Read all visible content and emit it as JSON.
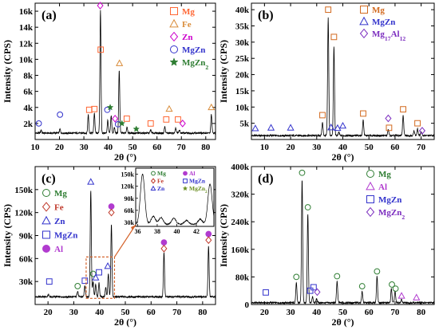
{
  "figure": {
    "panels": [
      "(a)",
      "(b)",
      "(c)",
      "(d)"
    ]
  },
  "chart_data": [
    {
      "panel": "(a)",
      "type": "line",
      "xlabel": "2θ (°)",
      "ylabel": "Intensity (CPS)",
      "xlim": [
        10,
        84
      ],
      "ylim": [
        0,
        17000
      ],
      "xticks": [
        10,
        20,
        30,
        40,
        50,
        60,
        70,
        80
      ],
      "yticks": [
        2000,
        4000,
        6000,
        8000,
        10000,
        12000,
        14000,
        16000
      ],
      "ytick_labels": [
        "2k",
        "4k",
        "6k",
        "8k",
        "10k",
        "12k",
        "14k",
        "16k"
      ],
      "baseline": 800,
      "peaks": [
        [
          12.5,
          1200
        ],
        [
          20.2,
          1300
        ],
        [
          31.8,
          3100
        ],
        [
          34.3,
          3300
        ],
        [
          36.8,
          16200
        ],
        [
          39.8,
          2400
        ],
        [
          41.2,
          3000
        ],
        [
          42.5,
          1500
        ],
        [
          44.5,
          8700
        ],
        [
          47.7,
          1600
        ],
        [
          57.4,
          1200
        ],
        [
          63.2,
          1600
        ],
        [
          67.7,
          1400
        ],
        [
          69.2,
          1200
        ],
        [
          72.5,
          800
        ],
        [
          82.3,
          3100
        ]
      ],
      "legend": [
        {
          "label": "Mg",
          "marker": "square",
          "color": "#ff6633"
        },
        {
          "label": "Fe",
          "marker": "triangle",
          "color": "#d98c3a"
        },
        {
          "label": "Zn",
          "marker": "diamond",
          "color": "#cc00cc"
        },
        {
          "label": "MgZn",
          "marker": "circle",
          "color": "#3333cc"
        },
        {
          "label": "MgZn",
          "sub": "2",
          "marker": "star",
          "color": "#2e7d32"
        }
      ],
      "markers": [
        {
          "x": 36.7,
          "y": 16700,
          "m": 2
        },
        {
          "x": 36.9,
          "y": 11200,
          "m": 0
        },
        {
          "x": 44.6,
          "y": 9500,
          "m": 1
        },
        {
          "x": 11.5,
          "y": 2000,
          "m": 3
        },
        {
          "x": 20.2,
          "y": 3100,
          "m": 3
        },
        {
          "x": 32.2,
          "y": 3700,
          "m": 0
        },
        {
          "x": 34.3,
          "y": 3800,
          "m": 0
        },
        {
          "x": 39.6,
          "y": 3700,
          "m": 3
        },
        {
          "x": 40.8,
          "y": 4000,
          "m": 4
        },
        {
          "x": 42.8,
          "y": 2600,
          "m": 2
        },
        {
          "x": 44.0,
          "y": 1900,
          "m": 3
        },
        {
          "x": 45.6,
          "y": 2000,
          "m": 4
        },
        {
          "x": 47.6,
          "y": 2600,
          "m": 0
        },
        {
          "x": 51.5,
          "y": 1300,
          "m": 4
        },
        {
          "x": 57.4,
          "y": 2000,
          "m": 0
        },
        {
          "x": 63.8,
          "y": 2500,
          "m": 0
        },
        {
          "x": 65.0,
          "y": 3800,
          "m": 1
        },
        {
          "x": 68.6,
          "y": 2500,
          "m": 0
        },
        {
          "x": 70.5,
          "y": 2000,
          "m": 2
        },
        {
          "x": 82.3,
          "y": 4000,
          "m": 1
        }
      ]
    },
    {
      "panel": "(b)",
      "type": "line",
      "xlabel": "2θ (°)",
      "ylabel": "Intensity (CPS)",
      "xlim": [
        5,
        75
      ],
      "ylim": [
        0,
        42000
      ],
      "xticks": [
        10,
        20,
        30,
        40,
        50,
        60,
        70
      ],
      "yticks": [
        5000,
        10000,
        15000,
        20000,
        25000,
        30000,
        35000,
        40000
      ],
      "ytick_labels": [
        "5k",
        "10k",
        "15k",
        "20k",
        "25k",
        "30k",
        "35k",
        "40k"
      ],
      "baseline": 1200,
      "peaks": [
        [
          32.2,
          5200
        ],
        [
          34.4,
          37500
        ],
        [
          36.6,
          28500
        ],
        [
          38.5,
          2200
        ],
        [
          47.8,
          6000
        ],
        [
          57.4,
          3000
        ],
        [
          63.1,
          7500
        ],
        [
          67.3,
          2600
        ],
        [
          68.6,
          3200
        ],
        [
          70.0,
          2400
        ]
      ],
      "legend": [
        {
          "label": "Mg",
          "marker": "square",
          "color": "#d2691e"
        },
        {
          "label": "MgZn",
          "marker": "triangle",
          "color": "#3333cc"
        },
        {
          "label": "Mg",
          "sub": "17",
          "label2": "Al",
          "sub2": "12",
          "marker": "diamond",
          "color": "#7b2cbf"
        }
      ],
      "markers": [
        {
          "x": 34.4,
          "y": 40000,
          "m": 0
        },
        {
          "x": 36.6,
          "y": 31600,
          "m": 0
        },
        {
          "x": 32.2,
          "y": 7500,
          "m": 0
        },
        {
          "x": 47.8,
          "y": 8000,
          "m": 0
        },
        {
          "x": 63.1,
          "y": 9300,
          "m": 0
        },
        {
          "x": 68.6,
          "y": 5000,
          "m": 0
        },
        {
          "x": 57.4,
          "y": 6500,
          "m": 2
        },
        {
          "x": 57.7,
          "y": 3600,
          "m": 0
        },
        {
          "x": 70.4,
          "y": 2700,
          "m": 2
        },
        {
          "x": 6.5,
          "y": 3400,
          "m": 1
        },
        {
          "x": 12.5,
          "y": 3600,
          "m": 1
        },
        {
          "x": 20.0,
          "y": 3600,
          "m": 1
        },
        {
          "x": 35.5,
          "y": 3700,
          "m": 1
        },
        {
          "x": 38.0,
          "y": 3500,
          "m": 1
        },
        {
          "x": 40.0,
          "y": 4200,
          "m": 1
        }
      ]
    },
    {
      "panel": "(c)",
      "type": "line",
      "xlabel": "2θ (°)",
      "ylabel": "Intensity (CPS)",
      "xlim": [
        15,
        85
      ],
      "ylim": [
        0,
        180000
      ],
      "xticks": [
        20,
        30,
        40,
        50,
        60,
        70,
        80
      ],
      "yticks": [
        30000,
        60000,
        90000,
        120000,
        150000
      ],
      "ytick_labels": [
        "30k",
        "60k",
        "90k",
        "120k",
        "150k"
      ],
      "baseline": 10000,
      "peaks": [
        [
          20.2,
          13000
        ],
        [
          31.5,
          18000
        ],
        [
          34.3,
          25000
        ],
        [
          36.6,
          150000
        ],
        [
          37.5,
          30000
        ],
        [
          38.5,
          26000
        ],
        [
          39.8,
          28000
        ],
        [
          42.4,
          22000
        ],
        [
          43.4,
          40000
        ],
        [
          44.6,
          105000
        ],
        [
          65.0,
          68000
        ],
        [
          82.3,
          76000
        ]
      ],
      "legend": [
        {
          "label": "Mg",
          "marker": "circle",
          "color": "#2e7d32"
        },
        {
          "label": "Fe",
          "marker": "diamond",
          "color": "#c0392b"
        },
        {
          "label": "Zn",
          "marker": "triangle",
          "color": "#3333cc"
        },
        {
          "label": "MgZn",
          "marker": "square",
          "color": "#3333cc"
        },
        {
          "label": "Al",
          "marker": "dot",
          "color": "#b13bcf"
        }
      ],
      "markers": [
        {
          "x": 36.6,
          "y": 160000,
          "m": 2
        },
        {
          "x": 44.6,
          "y": 128000,
          "m": 4
        },
        {
          "x": 44.6,
          "y": 120000,
          "m": 1
        },
        {
          "x": 65.0,
          "y": 81000,
          "m": 4
        },
        {
          "x": 65.0,
          "y": 73000,
          "m": 1
        },
        {
          "x": 82.3,
          "y": 92000,
          "m": 4
        },
        {
          "x": 82.3,
          "y": 84000,
          "m": 1
        },
        {
          "x": 20.5,
          "y": 30000,
          "m": 3
        },
        {
          "x": 31.5,
          "y": 24000,
          "m": 0
        },
        {
          "x": 34.3,
          "y": 31000,
          "m": 3
        },
        {
          "x": 37.5,
          "y": 40000,
          "m": 0
        },
        {
          "x": 38.5,
          "y": 35000,
          "m": 2
        },
        {
          "x": 39.8,
          "y": 42000,
          "m": 3
        },
        {
          "x": 43.2,
          "y": 50000,
          "m": 2
        }
      ],
      "inset": {
        "xlim": [
          35.8,
          43.8
        ],
        "ylim": [
          20000,
          165000
        ],
        "xticks": [
          36,
          38,
          40,
          42
        ],
        "yticks": [
          30000,
          60000,
          90000,
          120000,
          150000
        ],
        "ytick_labels": [
          "30k",
          "60k",
          "90k",
          "120k",
          "150k"
        ],
        "baseline": 25000,
        "peaks": [
          [
            36.5,
            150000
          ],
          [
            37.6,
            45000
          ],
          [
            38.4,
            42000
          ],
          [
            39.7,
            40000
          ],
          [
            41.0,
            35000
          ],
          [
            42.4,
            38000
          ],
          [
            43.4,
            125000
          ]
        ],
        "legend": [
          {
            "label": "Mg",
            "marker": "circle",
            "color": "#2e7d32"
          },
          {
            "label": "Fe",
            "marker": "diamond",
            "color": "#c0392b"
          },
          {
            "label": "Zn",
            "marker": "triangle",
            "color": "#3333cc"
          },
          {
            "label": "Al",
            "marker": "dot",
            "color": "#b13bcf"
          },
          {
            "label": "MgZn",
            "marker": "square",
            "color": "#3333cc"
          },
          {
            "label": "MgZn",
            "sub": "2",
            "marker": "star",
            "color": "#6b8e23"
          }
        ]
      }
    },
    {
      "panel": "(d)",
      "type": "line",
      "xlabel": "2θ (°)",
      "ylabel": "Intensity (CPS)",
      "xlim": [
        15,
        85
      ],
      "ylim": [
        0,
        400000
      ],
      "xticks": [
        20,
        30,
        40,
        50,
        60,
        70,
        80
      ],
      "yticks": [
        0,
        80000,
        160000,
        240000,
        320000,
        400000
      ],
      "ytick_labels": [
        "0",
        "80k",
        "160k",
        "240k",
        "320k",
        "400k"
      ],
      "baseline": 5000,
      "peaks": [
        [
          32.2,
          62000
        ],
        [
          34.4,
          365000
        ],
        [
          36.6,
          265000
        ],
        [
          38.4,
          22000
        ],
        [
          40.0,
          17000
        ],
        [
          47.8,
          68000
        ],
        [
          57.4,
          38000
        ],
        [
          63.1,
          82000
        ],
        [
          68.6,
          46000
        ],
        [
          70.0,
          38000
        ],
        [
          72.5,
          14000
        ]
      ],
      "legend": [
        {
          "label": "Mg",
          "marker": "circle",
          "color": "#2e7d32"
        },
        {
          "label": "Al",
          "marker": "triangle",
          "color": "#b13bcf"
        },
        {
          "label": "MgZn",
          "marker": "square",
          "color": "#3333cc"
        },
        {
          "label": "MgZn",
          "sub": "2",
          "marker": "diamond",
          "color": "#7b2cbf"
        }
      ],
      "markers": [
        {
          "x": 34.4,
          "y": 382000,
          "m": 0
        },
        {
          "x": 36.6,
          "y": 282000,
          "m": 0
        },
        {
          "x": 32.2,
          "y": 80000,
          "m": 0
        },
        {
          "x": 47.8,
          "y": 82000,
          "m": 0
        },
        {
          "x": 57.4,
          "y": 53000,
          "m": 0
        },
        {
          "x": 63.1,
          "y": 96000,
          "m": 0
        },
        {
          "x": 68.8,
          "y": 58000,
          "m": 0
        },
        {
          "x": 70.2,
          "y": 46000,
          "m": 0
        },
        {
          "x": 20.5,
          "y": 35000,
          "m": 2
        },
        {
          "x": 37.5,
          "y": 40000,
          "m": 2
        },
        {
          "x": 38.8,
          "y": 50000,
          "m": 2
        },
        {
          "x": 40.2,
          "y": 36000,
          "m": 3
        },
        {
          "x": 72.5,
          "y": 25000,
          "m": 1
        },
        {
          "x": 78.2,
          "y": 20000,
          "m": 1
        }
      ]
    }
  ]
}
